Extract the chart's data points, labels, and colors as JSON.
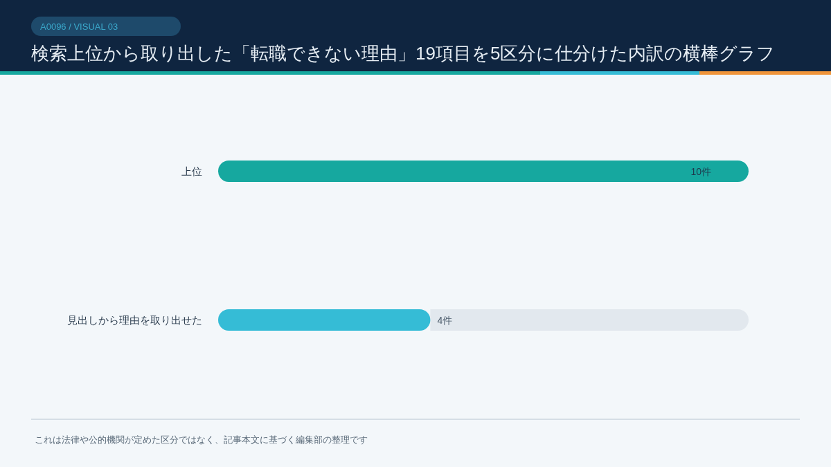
{
  "chart_data": {
    "type": "bar",
    "orientation": "horizontal",
    "title": "検索上位から取り出した「転職できない理由」19項目を5区分に仕分けた内訳の横棒グラフ",
    "categories": [
      "上位",
      "見出しから理由を取り出せた"
    ],
    "values": [
      10,
      4
    ],
    "colors": [
      "#16a89f",
      "#35bcd6"
    ],
    "value_labels": [
      "10件",
      "4件"
    ],
    "annotations": [
      "A0096 / VISUAL 03",
      "これは法律や公的機関が定めた区分ではなく、記事本文に基づく編集部の整理です"
    ]
  }
}
